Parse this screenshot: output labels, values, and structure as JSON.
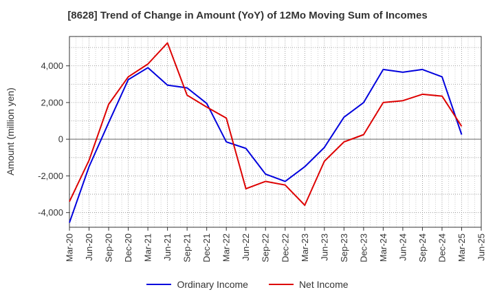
{
  "chart_data": {
    "type": "line",
    "title": "[8628]  Trend of Change in Amount (YoY) of 12Mo Moving Sum of Incomes",
    "ylabel": "Amount (million yen)",
    "xlabel": "",
    "ylim": [
      -4800,
      5600
    ],
    "yticks": [
      -4000,
      -2000,
      0,
      2000,
      4000
    ],
    "ytick_labels": [
      "-4,000",
      "-2,000",
      "0",
      "2,000",
      "4,000"
    ],
    "categories": [
      "Mar-20",
      "Jun-20",
      "Sep-20",
      "Dec-20",
      "Mar-21",
      "Jun-21",
      "Sep-21",
      "Dec-21",
      "Mar-22",
      "Jun-22",
      "Sep-22",
      "Dec-22",
      "Mar-23",
      "Jun-23",
      "Sep-23",
      "Dec-23",
      "Mar-24",
      "Jun-24",
      "Sep-24",
      "Dec-24",
      "Mar-25",
      "Jun-25"
    ],
    "grid": true,
    "legend_position": "bottom",
    "series": [
      {
        "name": "Ordinary Income",
        "color": "#0000dd",
        "values": [
          -4550,
          -1500,
          900,
          3250,
          3900,
          2950,
          2800,
          1950,
          -150,
          -500,
          -1900,
          -2300,
          -1500,
          -450,
          1200,
          2000,
          3800,
          3650,
          3800,
          3400,
          250,
          null
        ]
      },
      {
        "name": "Net Income",
        "color": "#dd0000",
        "values": [
          -3400,
          -1150,
          1900,
          3400,
          4100,
          5250,
          2400,
          1750,
          1150,
          -2700,
          -2300,
          -2500,
          -3600,
          -1200,
          -150,
          250,
          2000,
          2100,
          2450,
          2350,
          700,
          null
        ]
      }
    ]
  }
}
